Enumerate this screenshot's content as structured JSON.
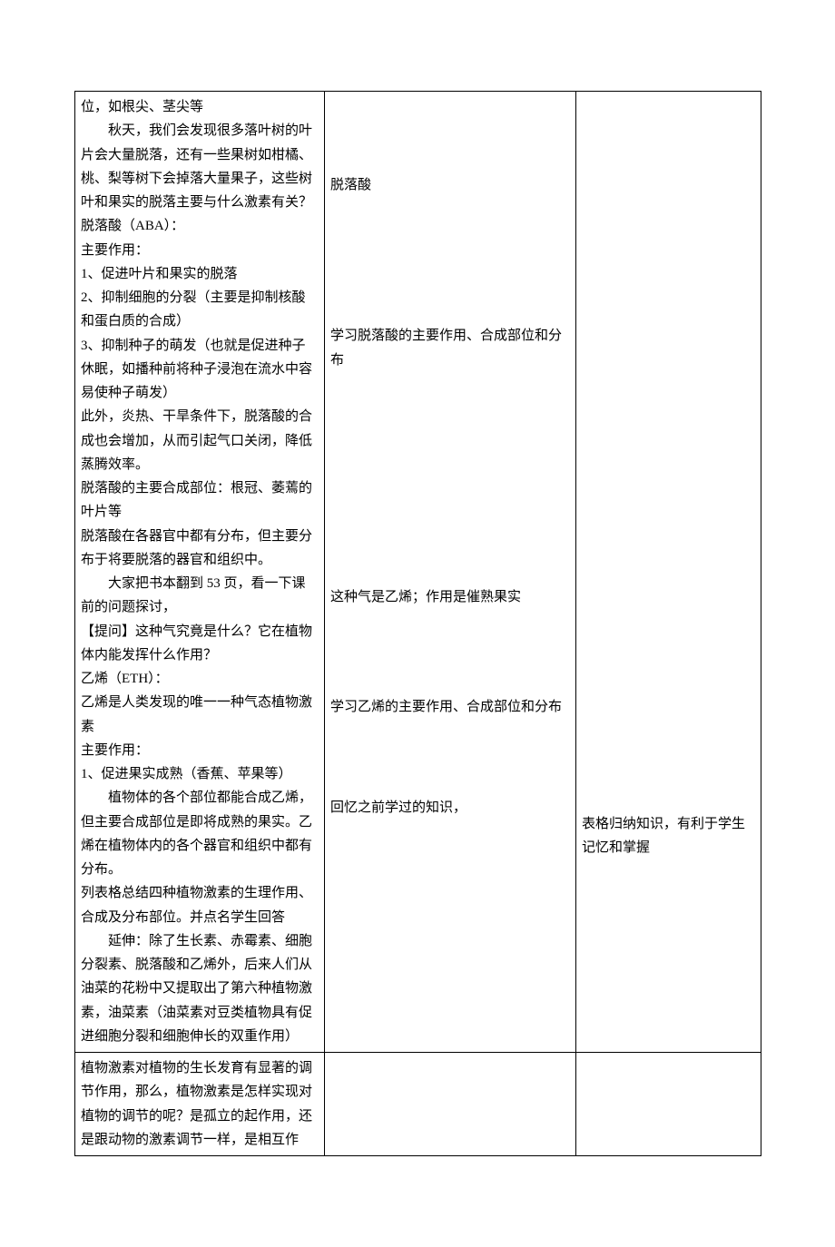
{
  "row1": {
    "col1": {
      "lines": [
        {
          "text": "位，如根尖、茎尖等",
          "indent": false
        },
        {
          "text": "秋天，我们会发现很多落叶树的叶片会大量脱落，还有一些果树如柑橘、桃、梨等树下会掉落大量果子，这些树叶和果实的脱落主要与什么激素有关？",
          "indent": true
        },
        {
          "text": "脱落酸（ABA）：",
          "indent": false
        },
        {
          "text": "主要作用：",
          "indent": false
        },
        {
          "text": "1、促进叶片和果实的脱落",
          "indent": false
        },
        {
          "text": "2、抑制细胞的分裂（主要是抑制核酸和蛋白质的合成）",
          "indent": false
        },
        {
          "text": "3、抑制种子的萌发（也就是促进种子休眠，如播种前将种子浸泡在流水中容易使种子萌发）",
          "indent": false
        },
        {
          "text": "此外，炎热、干旱条件下，脱落酸的合成也会增加，从而引起气口关闭，降低蒸腾效率。",
          "indent": false
        },
        {
          "text": "脱落酸的主要合成部位：根冠、萎蔫的叶片等",
          "indent": false
        },
        {
          "text": "脱落酸在各器官中都有分布，但主要分布于将要脱落的器官和组织中。",
          "indent": false
        },
        {
          "text": "大家把书本翻到 53 页，看一下课前的问题探讨，",
          "indent": true
        },
        {
          "text": "【提问】这种气究竟是什么？它在植物体内能发挥什么作用？",
          "indent": false
        },
        {
          "text": "乙烯（ETH）：",
          "indent": false
        },
        {
          "text": "乙烯是人类发现的唯一一种气态植物激素",
          "indent": false
        },
        {
          "text": "主要作用：",
          "indent": false
        },
        {
          "text": "1、促进果实成熟（香蕉、苹果等）",
          "indent": false
        },
        {
          "text": "植物体的各个部位都能合成乙烯，但主要合成部位是即将成熟的果实。乙烯在植物体内的各个器官和组织中都有分布。",
          "indent": true
        },
        {
          "text": "列表格总结四种植物激素的生理作用、合成及分布部位。并点名学生回答",
          "indent": false
        },
        {
          "text": "延伸：除了生长素、赤霉素、细胞分裂素、脱落酸和乙烯外，后来人们从油菜的花粉中又提取出了第六种植物激素，油菜素（油菜素对豆类植物具有促进细胞分裂和细胞伸长的双重作用）",
          "indent": true
        }
      ]
    },
    "col2": {
      "block1_gap": 90,
      "block1_text": "脱落酸",
      "block2_gap": 140,
      "block2_text": "学习脱落酸的主要作用、合成部位和分布",
      "block3_gap": 235,
      "block3_text": "这种气是乙烯；作用是催熟果实",
      "block4_gap": 95,
      "block4_text": "学习乙烯的主要作用、合成部位和分布",
      "block5_gap": 85,
      "block5_text": "回忆之前学过的知识，"
    },
    "col3": {
      "gap": 790,
      "text": "表格归纳知识，有利于学生记忆和掌握"
    }
  },
  "row2": {
    "col1": {
      "lines": [
        {
          "text": "植物激素对植物的生长发育有显著的调节作用，那么，植物激素是怎样实现对植物的调节的呢？是孤立的起作用，还是跟动物的激素调节一样，是相互作",
          "indent": false
        }
      ]
    }
  }
}
